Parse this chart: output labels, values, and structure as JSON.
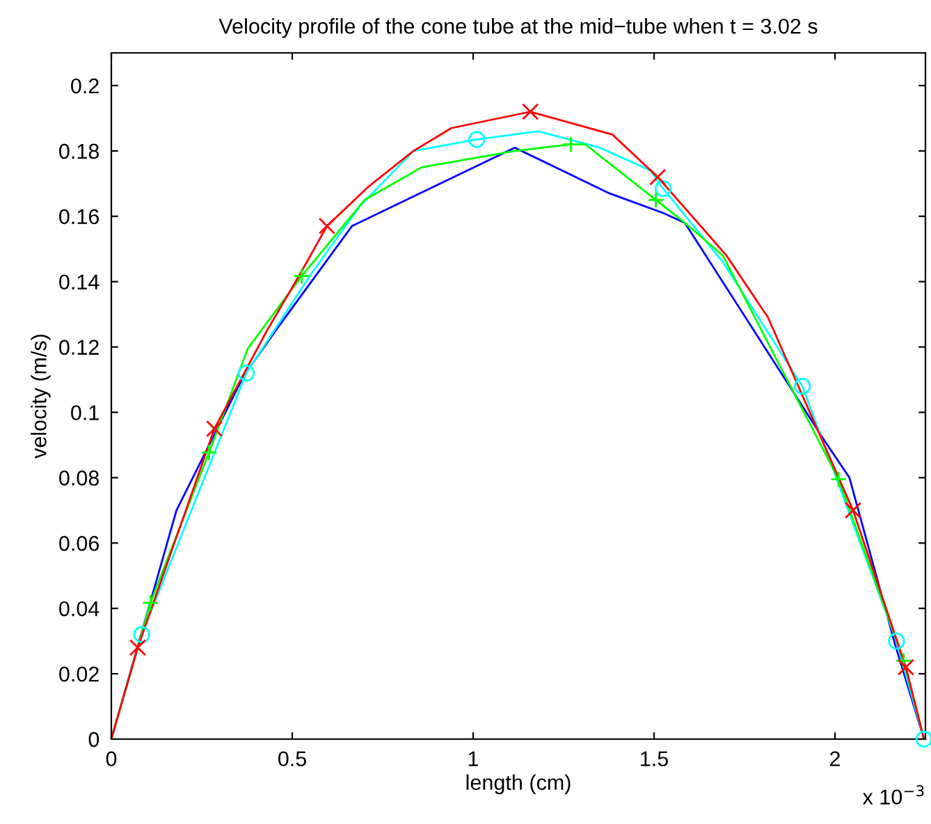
{
  "chart_data": {
    "type": "line",
    "title": "Velocity profile of the cone tube at the mid−tube when t = 3.02 s",
    "xlabel": "length (cm)",
    "ylabel": "velocity (m/s)",
    "annotations": [
      "x 10$^{−3}$"
    ],
    "xlim": [
      0,
      2.25
    ],
    "xticks": [
      0,
      0.5,
      1,
      1.5,
      2
    ],
    "ylim": [
      0,
      0.21
    ],
    "yticks": [
      0,
      0.02,
      0.04,
      0.06,
      0.08,
      0.1,
      0.12,
      0.14,
      0.16,
      0.18,
      0.2
    ],
    "grid": false,
    "line_style": "solid",
    "series": [
      {
        "color": "#0000ff",
        "marker": "none",
        "x": [
          0,
          0.18,
          0.365,
          0.454,
          0.665,
          1.115,
          1.377,
          1.525,
          1.585,
          1.973,
          2.04,
          2.166,
          2.246
        ],
        "values": [
          0,
          0.07,
          0.111,
          0.125,
          0.157,
          0.181,
          0.167,
          0.161,
          0.158,
          0.091,
          0.08,
          0.029,
          0
        ]
      },
      {
        "color": "#00ffff",
        "marker": "none",
        "x": [
          0,
          0.084,
          0.373,
          0.55,
          0.686,
          0.835,
          1.01,
          1.18,
          1.35,
          1.49,
          1.525,
          1.69,
          1.91,
          2.17,
          2.246
        ],
        "values": [
          0,
          0.032,
          0.112,
          0.142,
          0.163,
          0.18,
          0.1835,
          0.186,
          0.181,
          0.174,
          0.1685,
          0.146,
          0.108,
          0.03,
          0
        ]
      },
      {
        "color": "#00ff00",
        "marker": "none",
        "x": [
          0,
          0.108,
          0.27,
          0.377,
          0.526,
          0.7,
          0.858,
          1.115,
          1.27,
          1.31,
          1.505,
          1.585,
          1.69,
          2.01,
          2.19,
          2.246
        ],
        "values": [
          0,
          0.0417,
          0.0877,
          0.1195,
          0.1417,
          0.165,
          0.175,
          0.18,
          0.182,
          0.182,
          0.165,
          0.158,
          0.148,
          0.0795,
          0.024,
          0
        ]
      },
      {
        "color": "#ff0000",
        "marker": "none",
        "x": [
          0,
          0.073,
          0.285,
          0.43,
          0.52,
          0.596,
          0.71,
          0.835,
          0.94,
          1.158,
          1.385,
          1.51,
          1.7,
          1.815,
          2.05,
          2.196,
          2.246
        ],
        "values": [
          0,
          0.028,
          0.095,
          0.125,
          0.142,
          0.157,
          0.169,
          0.18,
          0.187,
          0.192,
          0.185,
          0.172,
          0.148,
          0.129,
          0.07,
          0.022,
          0
        ]
      },
      {
        "type": "scatter",
        "color": "#00ffff",
        "marker": "circle",
        "x": [
          0.084,
          0.373,
          1.01,
          1.525,
          1.91,
          2.17,
          2.246
        ],
        "values": [
          0.032,
          0.112,
          0.1835,
          0.1685,
          0.108,
          0.03,
          0
        ]
      },
      {
        "type": "scatter",
        "color": "#00ff00",
        "marker": "plus",
        "x": [
          0.108,
          0.27,
          0.526,
          1.27,
          1.505,
          2.01,
          2.19
        ],
        "values": [
          0.0417,
          0.0877,
          0.1417,
          0.182,
          0.165,
          0.0795,
          0.024
        ]
      },
      {
        "type": "scatter",
        "color": "#ff0000",
        "marker": "cross",
        "x": [
          0.073,
          0.285,
          0.596,
          1.158,
          1.51,
          2.05,
          2.196
        ],
        "values": [
          0.028,
          0.095,
          0.157,
          0.192,
          0.172,
          0.07,
          0.022
        ]
      }
    ]
  }
}
